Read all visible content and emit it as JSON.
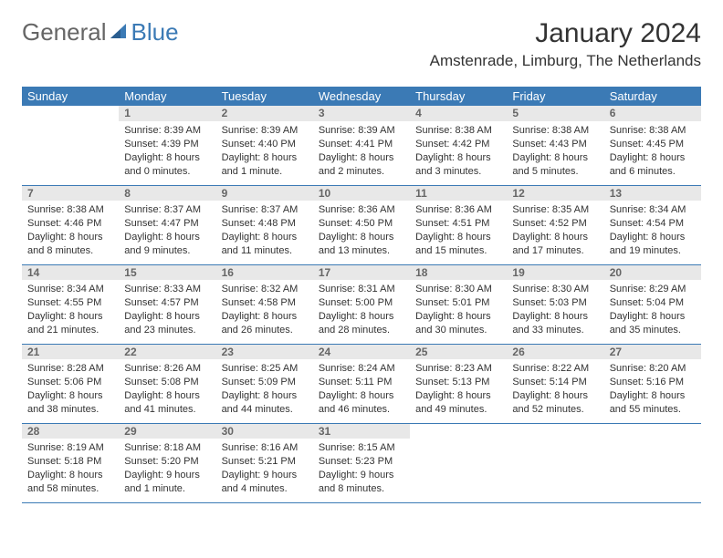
{
  "logo": {
    "text_gray": "General",
    "text_blue": "Blue"
  },
  "title": "January 2024",
  "location": "Amstenrade, Limburg, The Netherlands",
  "weekdays": [
    "Sunday",
    "Monday",
    "Tuesday",
    "Wednesday",
    "Thursday",
    "Friday",
    "Saturday"
  ],
  "colors": {
    "header_bg": "#3b7ab5",
    "header_fg": "#ffffff",
    "daynum_bg": "#e8e8e8",
    "daynum_fg": "#666666",
    "rule": "#3b7ab5",
    "logo_gray": "#666666",
    "logo_blue": "#3b7ab5"
  },
  "weeks": [
    [
      null,
      {
        "n": "1",
        "sr": "8:39 AM",
        "ss": "4:39 PM",
        "d": "8 hours and 0 minutes."
      },
      {
        "n": "2",
        "sr": "8:39 AM",
        "ss": "4:40 PM",
        "d": "8 hours and 1 minute."
      },
      {
        "n": "3",
        "sr": "8:39 AM",
        "ss": "4:41 PM",
        "d": "8 hours and 2 minutes."
      },
      {
        "n": "4",
        "sr": "8:38 AM",
        "ss": "4:42 PM",
        "d": "8 hours and 3 minutes."
      },
      {
        "n": "5",
        "sr": "8:38 AM",
        "ss": "4:43 PM",
        "d": "8 hours and 5 minutes."
      },
      {
        "n": "6",
        "sr": "8:38 AM",
        "ss": "4:45 PM",
        "d": "8 hours and 6 minutes."
      }
    ],
    [
      {
        "n": "7",
        "sr": "8:38 AM",
        "ss": "4:46 PM",
        "d": "8 hours and 8 minutes."
      },
      {
        "n": "8",
        "sr": "8:37 AM",
        "ss": "4:47 PM",
        "d": "8 hours and 9 minutes."
      },
      {
        "n": "9",
        "sr": "8:37 AM",
        "ss": "4:48 PM",
        "d": "8 hours and 11 minutes."
      },
      {
        "n": "10",
        "sr": "8:36 AM",
        "ss": "4:50 PM",
        "d": "8 hours and 13 minutes."
      },
      {
        "n": "11",
        "sr": "8:36 AM",
        "ss": "4:51 PM",
        "d": "8 hours and 15 minutes."
      },
      {
        "n": "12",
        "sr": "8:35 AM",
        "ss": "4:52 PM",
        "d": "8 hours and 17 minutes."
      },
      {
        "n": "13",
        "sr": "8:34 AM",
        "ss": "4:54 PM",
        "d": "8 hours and 19 minutes."
      }
    ],
    [
      {
        "n": "14",
        "sr": "8:34 AM",
        "ss": "4:55 PM",
        "d": "8 hours and 21 minutes."
      },
      {
        "n": "15",
        "sr": "8:33 AM",
        "ss": "4:57 PM",
        "d": "8 hours and 23 minutes."
      },
      {
        "n": "16",
        "sr": "8:32 AM",
        "ss": "4:58 PM",
        "d": "8 hours and 26 minutes."
      },
      {
        "n": "17",
        "sr": "8:31 AM",
        "ss": "5:00 PM",
        "d": "8 hours and 28 minutes."
      },
      {
        "n": "18",
        "sr": "8:30 AM",
        "ss": "5:01 PM",
        "d": "8 hours and 30 minutes."
      },
      {
        "n": "19",
        "sr": "8:30 AM",
        "ss": "5:03 PM",
        "d": "8 hours and 33 minutes."
      },
      {
        "n": "20",
        "sr": "8:29 AM",
        "ss": "5:04 PM",
        "d": "8 hours and 35 minutes."
      }
    ],
    [
      {
        "n": "21",
        "sr": "8:28 AM",
        "ss": "5:06 PM",
        "d": "8 hours and 38 minutes."
      },
      {
        "n": "22",
        "sr": "8:26 AM",
        "ss": "5:08 PM",
        "d": "8 hours and 41 minutes."
      },
      {
        "n": "23",
        "sr": "8:25 AM",
        "ss": "5:09 PM",
        "d": "8 hours and 44 minutes."
      },
      {
        "n": "24",
        "sr": "8:24 AM",
        "ss": "5:11 PM",
        "d": "8 hours and 46 minutes."
      },
      {
        "n": "25",
        "sr": "8:23 AM",
        "ss": "5:13 PM",
        "d": "8 hours and 49 minutes."
      },
      {
        "n": "26",
        "sr": "8:22 AM",
        "ss": "5:14 PM",
        "d": "8 hours and 52 minutes."
      },
      {
        "n": "27",
        "sr": "8:20 AM",
        "ss": "5:16 PM",
        "d": "8 hours and 55 minutes."
      }
    ],
    [
      {
        "n": "28",
        "sr": "8:19 AM",
        "ss": "5:18 PM",
        "d": "8 hours and 58 minutes."
      },
      {
        "n": "29",
        "sr": "8:18 AM",
        "ss": "5:20 PM",
        "d": "9 hours and 1 minute."
      },
      {
        "n": "30",
        "sr": "8:16 AM",
        "ss": "5:21 PM",
        "d": "9 hours and 4 minutes."
      },
      {
        "n": "31",
        "sr": "8:15 AM",
        "ss": "5:23 PM",
        "d": "9 hours and 8 minutes."
      },
      null,
      null,
      null
    ]
  ],
  "labels": {
    "sunrise": "Sunrise:",
    "sunset": "Sunset:",
    "daylight": "Daylight:"
  }
}
